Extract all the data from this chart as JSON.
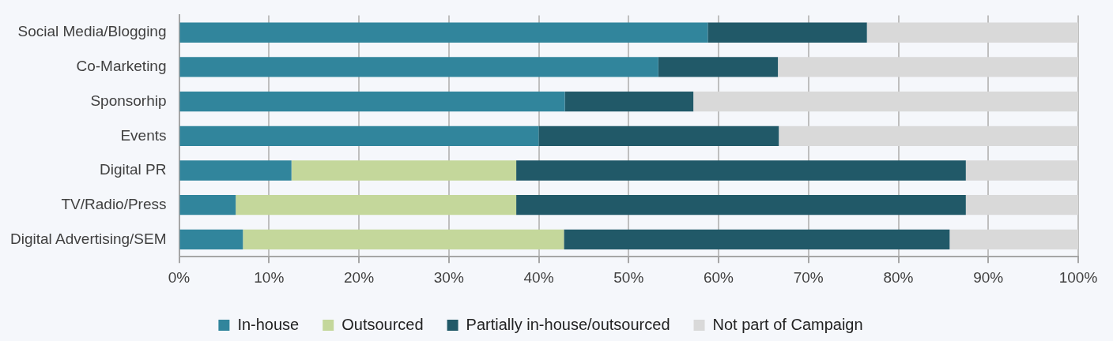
{
  "chart_data": {
    "type": "bar",
    "orientation": "horizontal",
    "stacked": true,
    "categories": [
      "Social Media/Blogging",
      "Co-Marketing",
      "Sponsorhip",
      "Events",
      "Digital PR",
      "TV/Radio/Press",
      "Digital Advertising/SEM"
    ],
    "series": [
      {
        "name": "In-house",
        "color": "#31859c",
        "values": [
          58.8,
          53.3,
          42.9,
          40,
          12.5,
          6.3,
          7.1
        ]
      },
      {
        "name": "Outsourced",
        "color": "#c4d79b",
        "values": [
          0,
          0,
          0,
          0,
          25,
          31.2,
          35.7
        ]
      },
      {
        "name": "Partially in-house/outsourced",
        "color": "#215968",
        "values": [
          17.7,
          13.3,
          14.3,
          26.7,
          50,
          50,
          42.9
        ]
      },
      {
        "name": "Not part of Campaign",
        "color": "#d9d9d9",
        "values": [
          23.5,
          33.4,
          42.8,
          33.3,
          12.5,
          12.5,
          14.3
        ]
      }
    ],
    "xlim": [
      0,
      100
    ],
    "xticks": [
      {
        "value": 0,
        "label": "0%"
      },
      {
        "value": 10,
        "label": "10%"
      },
      {
        "value": 20,
        "label": "20%"
      },
      {
        "value": 30,
        "label": "30%"
      },
      {
        "value": 40,
        "label": "40%"
      },
      {
        "value": 50,
        "label": "50%"
      },
      {
        "value": 60,
        "label": "60%"
      },
      {
        "value": 70,
        "label": "70%"
      },
      {
        "value": 80,
        "label": "80%"
      },
      {
        "value": 90,
        "label": "90%"
      },
      {
        "value": 100,
        "label": "100%"
      }
    ],
    "grid": "x",
    "legend": "bottom"
  }
}
